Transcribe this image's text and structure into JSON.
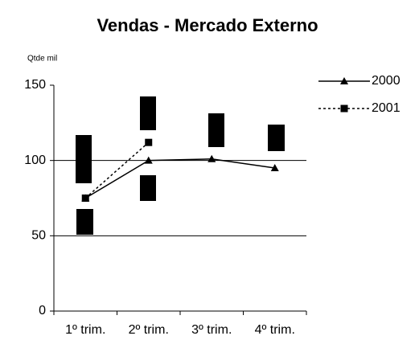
{
  "chart_data": {
    "type": "line",
    "title": "Vendas - Mercado Externo",
    "y_label": "Qtde mil",
    "categories": [
      "1º trim.",
      "2º trim.",
      "3º trim.",
      "4º trim."
    ],
    "series": [
      {
        "name": "2000",
        "color": "#000000",
        "marker": "triangle",
        "dash": "solid",
        "values": [
          75,
          100,
          101,
          95
        ]
      },
      {
        "name": "2001",
        "color": "#000000",
        "marker": "square",
        "dash": "dotted",
        "values": [
          75,
          112,
          null,
          null
        ]
      }
    ],
    "ylim": [
      0,
      150
    ],
    "yticks": [
      0,
      50,
      100,
      150
    ],
    "grid": true,
    "legend": "right"
  }
}
